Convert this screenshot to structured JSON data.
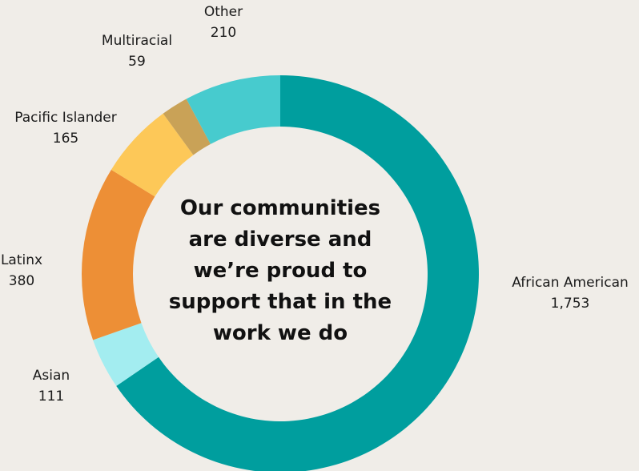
{
  "chart_data": {
    "type": "pie",
    "variant": "donut",
    "center_text": [
      "Our communities",
      "are diverse and",
      "we’re proud to",
      "support that in the",
      "work we do"
    ],
    "slices": [
      {
        "label": "African American",
        "value": 1753,
        "display_value": "1,753",
        "color": "#009e9e"
      },
      {
        "label": "Asian",
        "value": 111,
        "display_value": "111",
        "color": "#a3edf0"
      },
      {
        "label": "Latinx",
        "value": 380,
        "display_value": "380",
        "color": "#ed8f36"
      },
      {
        "label": "Pacific Islander",
        "value": 165,
        "display_value": "165",
        "color": "#fdc858"
      },
      {
        "label": "Multiracial",
        "value": 59,
        "display_value": "59",
        "color": "#c9a257"
      },
      {
        "label": "Other",
        "value": 210,
        "display_value": "210",
        "color": "#47cbce"
      }
    ],
    "legend": "none"
  }
}
